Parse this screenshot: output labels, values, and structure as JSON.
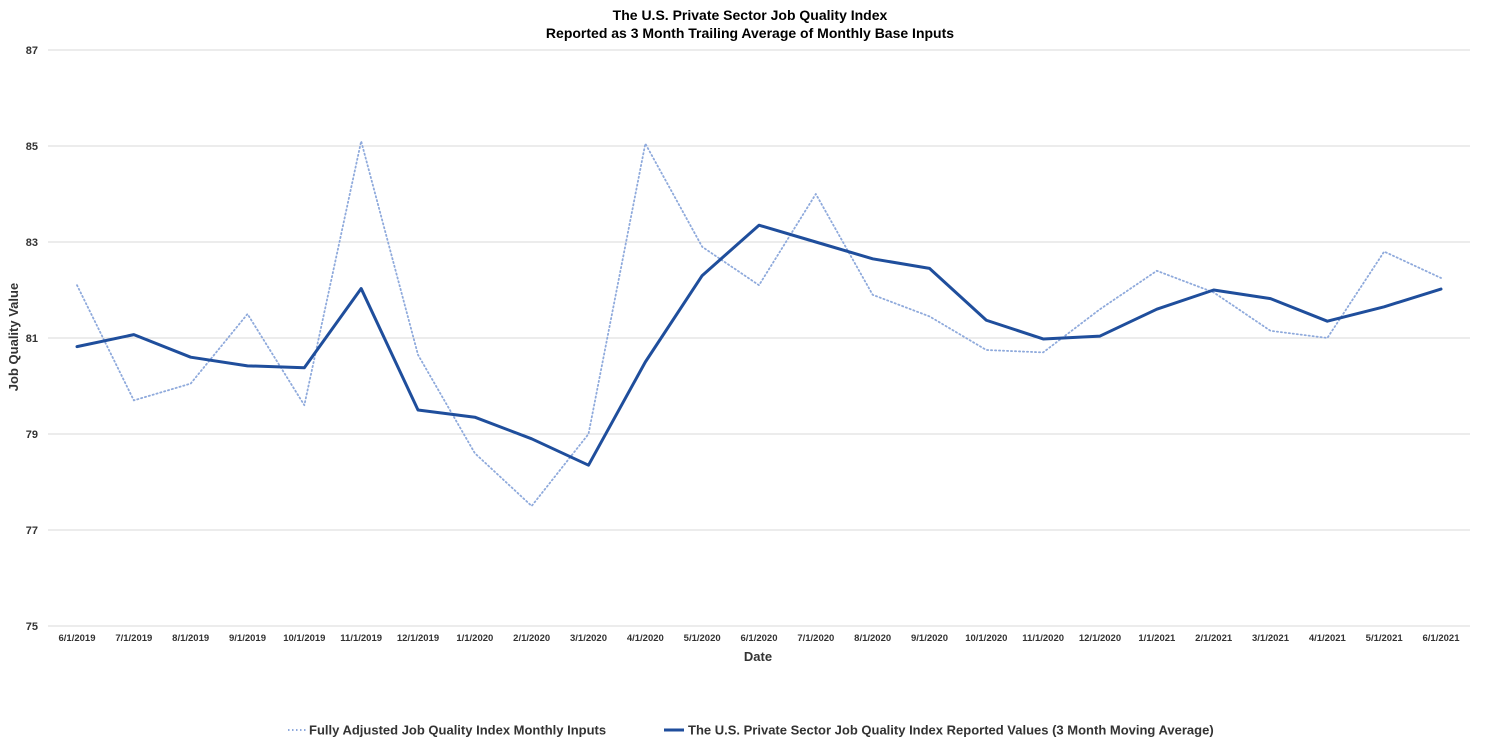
{
  "chart_data": {
    "type": "line",
    "title": "The U.S. Private Sector Job Quality Index",
    "subtitle": "Reported as 3 Month Trailing Average of Monthly Base Inputs",
    "xlabel": "Date",
    "ylabel": "Job Quality Value",
    "ylim": [
      75,
      87
    ],
    "yticks": [
      75,
      77,
      79,
      81,
      83,
      85,
      87
    ],
    "grid": true,
    "legend_position": "bottom",
    "categories": [
      "6/1/2019",
      "7/1/2019",
      "8/1/2019",
      "9/1/2019",
      "10/1/2019",
      "11/1/2019",
      "12/1/2019",
      "1/1/2020",
      "2/1/2020",
      "3/1/2020",
      "4/1/2020",
      "5/1/2020",
      "6/1/2020",
      "7/1/2020",
      "8/1/2020",
      "9/1/2020",
      "10/1/2020",
      "11/1/2020",
      "12/1/2020",
      "1/1/2021",
      "2/1/2021",
      "3/1/2021",
      "4/1/2021",
      "5/1/2021",
      "6/1/2021"
    ],
    "series": [
      {
        "name": "Fully Adjusted Job Quality Index Monthly Inputs",
        "color": "#8faadc",
        "style": "dotted",
        "values": [
          82.1,
          79.7,
          80.05,
          81.5,
          79.6,
          85.1,
          80.65,
          78.6,
          77.5,
          79.0,
          85.05,
          82.9,
          82.1,
          84.0,
          81.9,
          81.45,
          80.75,
          80.7,
          81.6,
          82.4,
          81.95,
          81.15,
          81.0,
          82.8,
          82.25
        ]
      },
      {
        "name": "The U.S. Private Sector Job Quality Index Reported Values (3  Month Moving Average)",
        "color": "#1f4e9c",
        "style": "solid",
        "values": [
          80.82,
          81.07,
          80.6,
          80.42,
          80.38,
          82.03,
          79.5,
          79.35,
          78.9,
          78.35,
          80.5,
          82.3,
          83.35,
          83.0,
          82.65,
          82.45,
          81.37,
          80.98,
          81.04,
          81.6,
          82.0,
          81.82,
          81.35,
          81.65,
          82.02
        ]
      }
    ]
  }
}
